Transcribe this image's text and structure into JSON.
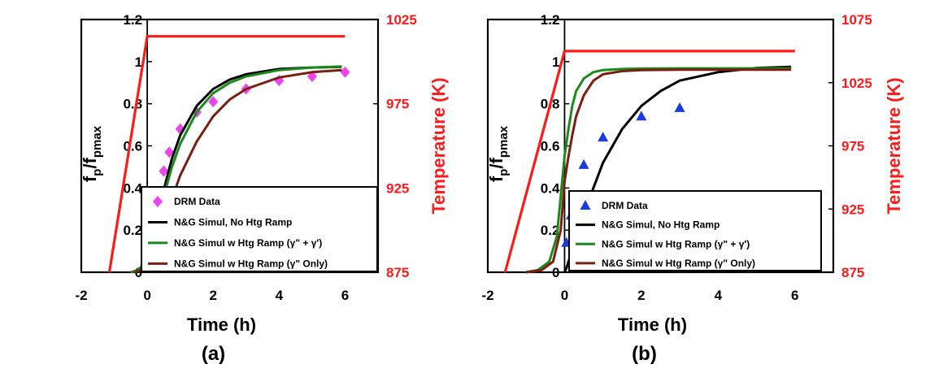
{
  "chart_data": [
    {
      "type": "line",
      "panel_label": "(a)",
      "xlabel": "Time (h)",
      "ylabel_main": "f",
      "ylabel_sub1": "p",
      "ylabel_sep": "/f",
      "ylabel_sub2": "pmax",
      "y2label": "Temperature (K)",
      "xlim": [
        -2,
        7
      ],
      "ylim": [
        0,
        1.2
      ],
      "y2lim": [
        875,
        1025
      ],
      "xticks": [
        "-2",
        "0",
        "2",
        "4",
        "6"
      ],
      "yticks": [
        "0",
        "0.2",
        "0.4",
        "0.6",
        "0.8",
        "1",
        "1.2"
      ],
      "y2ticks": [
        "875",
        "925",
        "975",
        "1025"
      ],
      "legend_position": "lower-right",
      "series": [
        {
          "name": "DRM Data",
          "kind": "scatter",
          "marker": "diamond",
          "color": "#ee44ee",
          "x": [
            0.17,
            0.33,
            0.5,
            0.67,
            1.0,
            1.5,
            2.0,
            3.0,
            4.0,
            5.0,
            6.0
          ],
          "y": [
            0.17,
            0.35,
            0.48,
            0.57,
            0.68,
            0.76,
            0.81,
            0.87,
            0.91,
            0.93,
            0.95
          ]
        },
        {
          "name": "N&G Simul, No Htg Ramp",
          "kind": "line",
          "color": "#000000",
          "x": [
            0,
            0.05,
            0.1,
            0.2,
            0.3,
            0.5,
            0.75,
            1.0,
            1.5,
            2.0,
            2.5,
            3.0,
            4.0,
            5.0,
            5.9
          ],
          "y": [
            0,
            0.02,
            0.06,
            0.15,
            0.24,
            0.39,
            0.54,
            0.65,
            0.79,
            0.87,
            0.915,
            0.94,
            0.965,
            0.972,
            0.975
          ]
        },
        {
          "name": "N&G Simul w Htg Ramp (γʺ + γʹ)",
          "kind": "line",
          "color": "#1a8a1a",
          "x": [
            -0.5,
            -0.3,
            -0.15,
            0,
            0.1,
            0.2,
            0.3,
            0.5,
            0.75,
            1.0,
            1.5,
            2.0,
            2.5,
            3.0,
            4.0,
            5.0,
            5.9
          ],
          "y": [
            0,
            0.01,
            0.03,
            0.07,
            0.12,
            0.18,
            0.24,
            0.36,
            0.5,
            0.61,
            0.76,
            0.85,
            0.9,
            0.93,
            0.96,
            0.972,
            0.977
          ]
        },
        {
          "name": "N&G Simul w Htg Ramp (γʺ Only)",
          "kind": "line",
          "color": "#7a1e12",
          "x": [
            -0.4,
            -0.2,
            0,
            0.1,
            0.2,
            0.3,
            0.5,
            0.75,
            1.0,
            1.5,
            2.0,
            2.5,
            3.0,
            4.0,
            5.0,
            5.9
          ],
          "y": [
            0,
            0.01,
            0.03,
            0.06,
            0.1,
            0.14,
            0.23,
            0.35,
            0.46,
            0.62,
            0.74,
            0.82,
            0.87,
            0.925,
            0.95,
            0.96
          ]
        },
        {
          "name": "Temperature",
          "kind": "line",
          "axis": "y2",
          "color": "#ff1a1a",
          "x": [
            -1.15,
            0,
            6
          ],
          "y": [
            875,
            1015,
            1015
          ]
        }
      ],
      "legend": [
        "DRM Data",
        "N&G Simul, No Htg Ramp",
        "N&G Simul w Htg Ramp (γʺ + γʹ)",
        "N&G Simul w Htg Ramp (γʺ Only)"
      ]
    },
    {
      "type": "line",
      "panel_label": "(b)",
      "xlabel": "Time (h)",
      "ylabel_main": "f",
      "ylabel_sub1": "p",
      "ylabel_sep": "/f",
      "ylabel_sub2": "pmax",
      "y2label": "Temperature (K)",
      "xlim": [
        -2,
        7
      ],
      "ylim": [
        0,
        1.2
      ],
      "y2lim": [
        875,
        1075
      ],
      "xticks": [
        "-2",
        "0",
        "2",
        "4",
        "6"
      ],
      "yticks": [
        "0",
        "0.2",
        "0.4",
        "0.6",
        "0.8",
        "1",
        "1.2"
      ],
      "y2ticks": [
        "875",
        "925",
        "975",
        "1025",
        "1075"
      ],
      "legend_position": "lower-right",
      "series": [
        {
          "name": "DRM Data",
          "kind": "scatter",
          "marker": "triangle",
          "color": "#1a3be0",
          "x": [
            0.05,
            0.17,
            0.25,
            0.5,
            1.0,
            2.0,
            3.0
          ],
          "y": [
            0.14,
            0.27,
            0.32,
            0.51,
            0.64,
            0.74,
            0.78
          ]
        },
        {
          "name": "N&G Simul, No Htg Ramp",
          "kind": "line",
          "color": "#000000",
          "x": [
            0,
            0.05,
            0.1,
            0.2,
            0.3,
            0.5,
            0.75,
            1.0,
            1.5,
            2.0,
            2.5,
            3.0,
            4.0,
            5.0,
            5.9
          ],
          "y": [
            0,
            0.02,
            0.05,
            0.1,
            0.16,
            0.27,
            0.4,
            0.52,
            0.68,
            0.79,
            0.86,
            0.91,
            0.95,
            0.97,
            0.975
          ]
        },
        {
          "name": "N&G Simul w Htg Ramp (γʺ + γʹ)",
          "kind": "line",
          "color": "#1a8a1a",
          "x": [
            -1.0,
            -0.7,
            -0.4,
            -0.2,
            0,
            0.1,
            0.2,
            0.3,
            0.5,
            0.75,
            1.0,
            1.5,
            2.0,
            3.0,
            5.9
          ],
          "y": [
            0,
            0.01,
            0.05,
            0.17,
            0.55,
            0.68,
            0.79,
            0.86,
            0.92,
            0.95,
            0.96,
            0.965,
            0.967,
            0.968,
            0.968
          ]
        },
        {
          "name": "N&G Simul w Htg Ramp (γʺ Only)",
          "kind": "line",
          "color": "#7a1e12",
          "x": [
            -1.0,
            -0.6,
            -0.3,
            -0.1,
            0,
            0.1,
            0.2,
            0.3,
            0.5,
            0.75,
            1.0,
            1.5,
            2.0,
            3.0,
            5.9
          ],
          "y": [
            0,
            0.01,
            0.05,
            0.2,
            0.43,
            0.55,
            0.65,
            0.74,
            0.84,
            0.91,
            0.94,
            0.955,
            0.96,
            0.962,
            0.962
          ]
        },
        {
          "name": "Temperature",
          "kind": "line",
          "axis": "y2",
          "color": "#ff1a1a",
          "x": [
            -1.55,
            0,
            6
          ],
          "y": [
            875,
            1050,
            1050
          ]
        }
      ],
      "legend": [
        "DRM Data",
        "N&G Simul, No Htg Ramp",
        "N&G Simul w Htg Ramp (γʺ + γʹ)",
        "N&G Simul w Htg Ramp (γʺ Only)"
      ]
    }
  ]
}
